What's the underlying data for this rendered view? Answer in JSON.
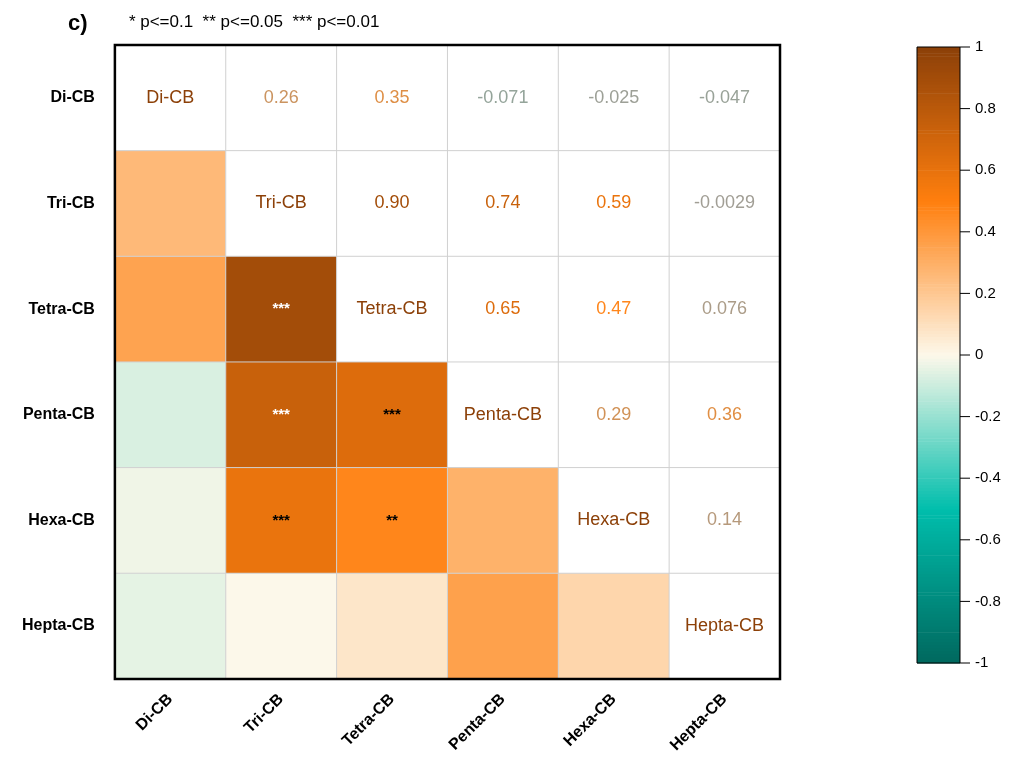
{
  "chart_data": {
    "type": "heatmap",
    "title": "c)",
    "subtitle": "* p<=0.1  ** p<=0.05  *** p<=0.01",
    "categories": [
      "Di-CB",
      "Tri-CB",
      "Tetra-CB",
      "Penta-CB",
      "Hexa-CB",
      "Hepta-CB"
    ],
    "y_categories": [
      "Di-CB",
      "Tri-CB",
      "Tetra-CB",
      "Penta-CB",
      "Hexa-CB",
      "Hepta-CB"
    ],
    "cells": [
      [
        null,
        null,
        null,
        null,
        null,
        null
      ],
      [
        0.26,
        null,
        null,
        null,
        null,
        null
      ],
      [
        0.35,
        0.9,
        null,
        null,
        null,
        null
      ],
      [
        -0.071,
        0.74,
        0.65,
        null,
        null,
        null
      ],
      [
        -0.025,
        0.59,
        0.47,
        0.29,
        null,
        null
      ],
      [
        -0.047,
        -0.0029,
        0.076,
        0.36,
        0.14,
        null
      ]
    ],
    "cell_labels": [
      [
        "Di-CB",
        "0.26",
        "0.35",
        "-0.071",
        "-0.025",
        "-0.047"
      ],
      [
        null,
        "Tri-CB",
        "0.90",
        "0.74",
        "0.59",
        "-0.0029"
      ],
      [
        null,
        "***",
        "Tetra-CB",
        "0.65",
        "0.47",
        "0.076"
      ],
      [
        null,
        "***",
        "***",
        "Penta-CB",
        "0.29",
        "0.36"
      ],
      [
        null,
        "***",
        "**",
        null,
        "Hexa-CB",
        "0.14"
      ],
      [
        null,
        null,
        null,
        null,
        null,
        "Hepta-CB"
      ]
    ],
    "clim": [
      -1,
      1
    ],
    "cticks": [
      -1,
      -0.8,
      -0.6,
      -0.4,
      -0.2,
      0,
      0.2,
      0.4,
      0.6,
      0.8,
      1
    ],
    "grid": true
  }
}
